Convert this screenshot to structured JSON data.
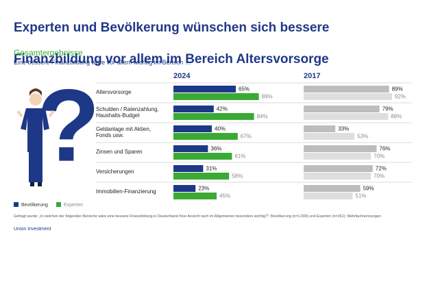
{
  "chart_data": {
    "type": "bar",
    "orientation": "horizontal",
    "title": [
      "Experten und Bevölkerung wünschen sich bessere",
      "Finanzbildung vor allem im Bereich Altersvorsorge"
    ],
    "subtitle": "Gesamtergebnisse",
    "question": "Eine bessere Finanzbildung wäre vor allem wichtig im Bereich …",
    "categories": [
      "Altersvorsorge",
      "Schulden / Ratenzahlung,\nHaushalts-Budget",
      "Geldanlage mit Aktien,\nFonds usw.",
      "Zinsen und Sparen",
      "Versicherungen",
      "Immobilien-Finanzierung"
    ],
    "legend_names": [
      "Bevölkerung",
      "Experten"
    ],
    "legend_colors": [
      "#1e3888",
      "#3aaa35"
    ],
    "panels": [
      {
        "title": "2024",
        "series": [
          {
            "color": "#1e3888",
            "values": [
              65,
              42,
              40,
              36,
              31,
              23
            ],
            "value_labels": [
              "65%",
              "42%",
              "40%",
              "36%",
              "31%",
              "23%"
            ]
          },
          {
            "color": "#3aaa35",
            "values": [
              89,
              84,
              67,
              61,
              58,
              45
            ],
            "value_labels": [
              "89%",
              "84%",
              "67%",
              "61%",
              "58%",
              "45%"
            ]
          }
        ]
      },
      {
        "title": "2017",
        "series": [
          {
            "color": "#bdbdbd",
            "values": [
              89,
              79,
              33,
              76,
              72,
              59
            ],
            "value_labels": [
              "89%",
              "79%",
              "33%",
              "76%",
              "72%",
              "59%"
            ]
          },
          {
            "color": "#dedede",
            "values": [
              92,
              88,
              53,
              70,
              70,
              51
            ],
            "value_labels": [
              "92%",
              "88%",
              "53%",
              "70%",
              "70%",
              "51%"
            ]
          }
        ]
      }
    ],
    "footnote": "Gefragt wurde: „In welchen der folgenden Bereiche wäre eine bessere Finanzbildung in Deutschland Ihrer Ansicht nach im Allgemeinen besonders wichtig?\"; Bevölkerung (n=1.009) und Experten (n=261); Mehrfachnennungen",
    "source": "Union Investment"
  }
}
